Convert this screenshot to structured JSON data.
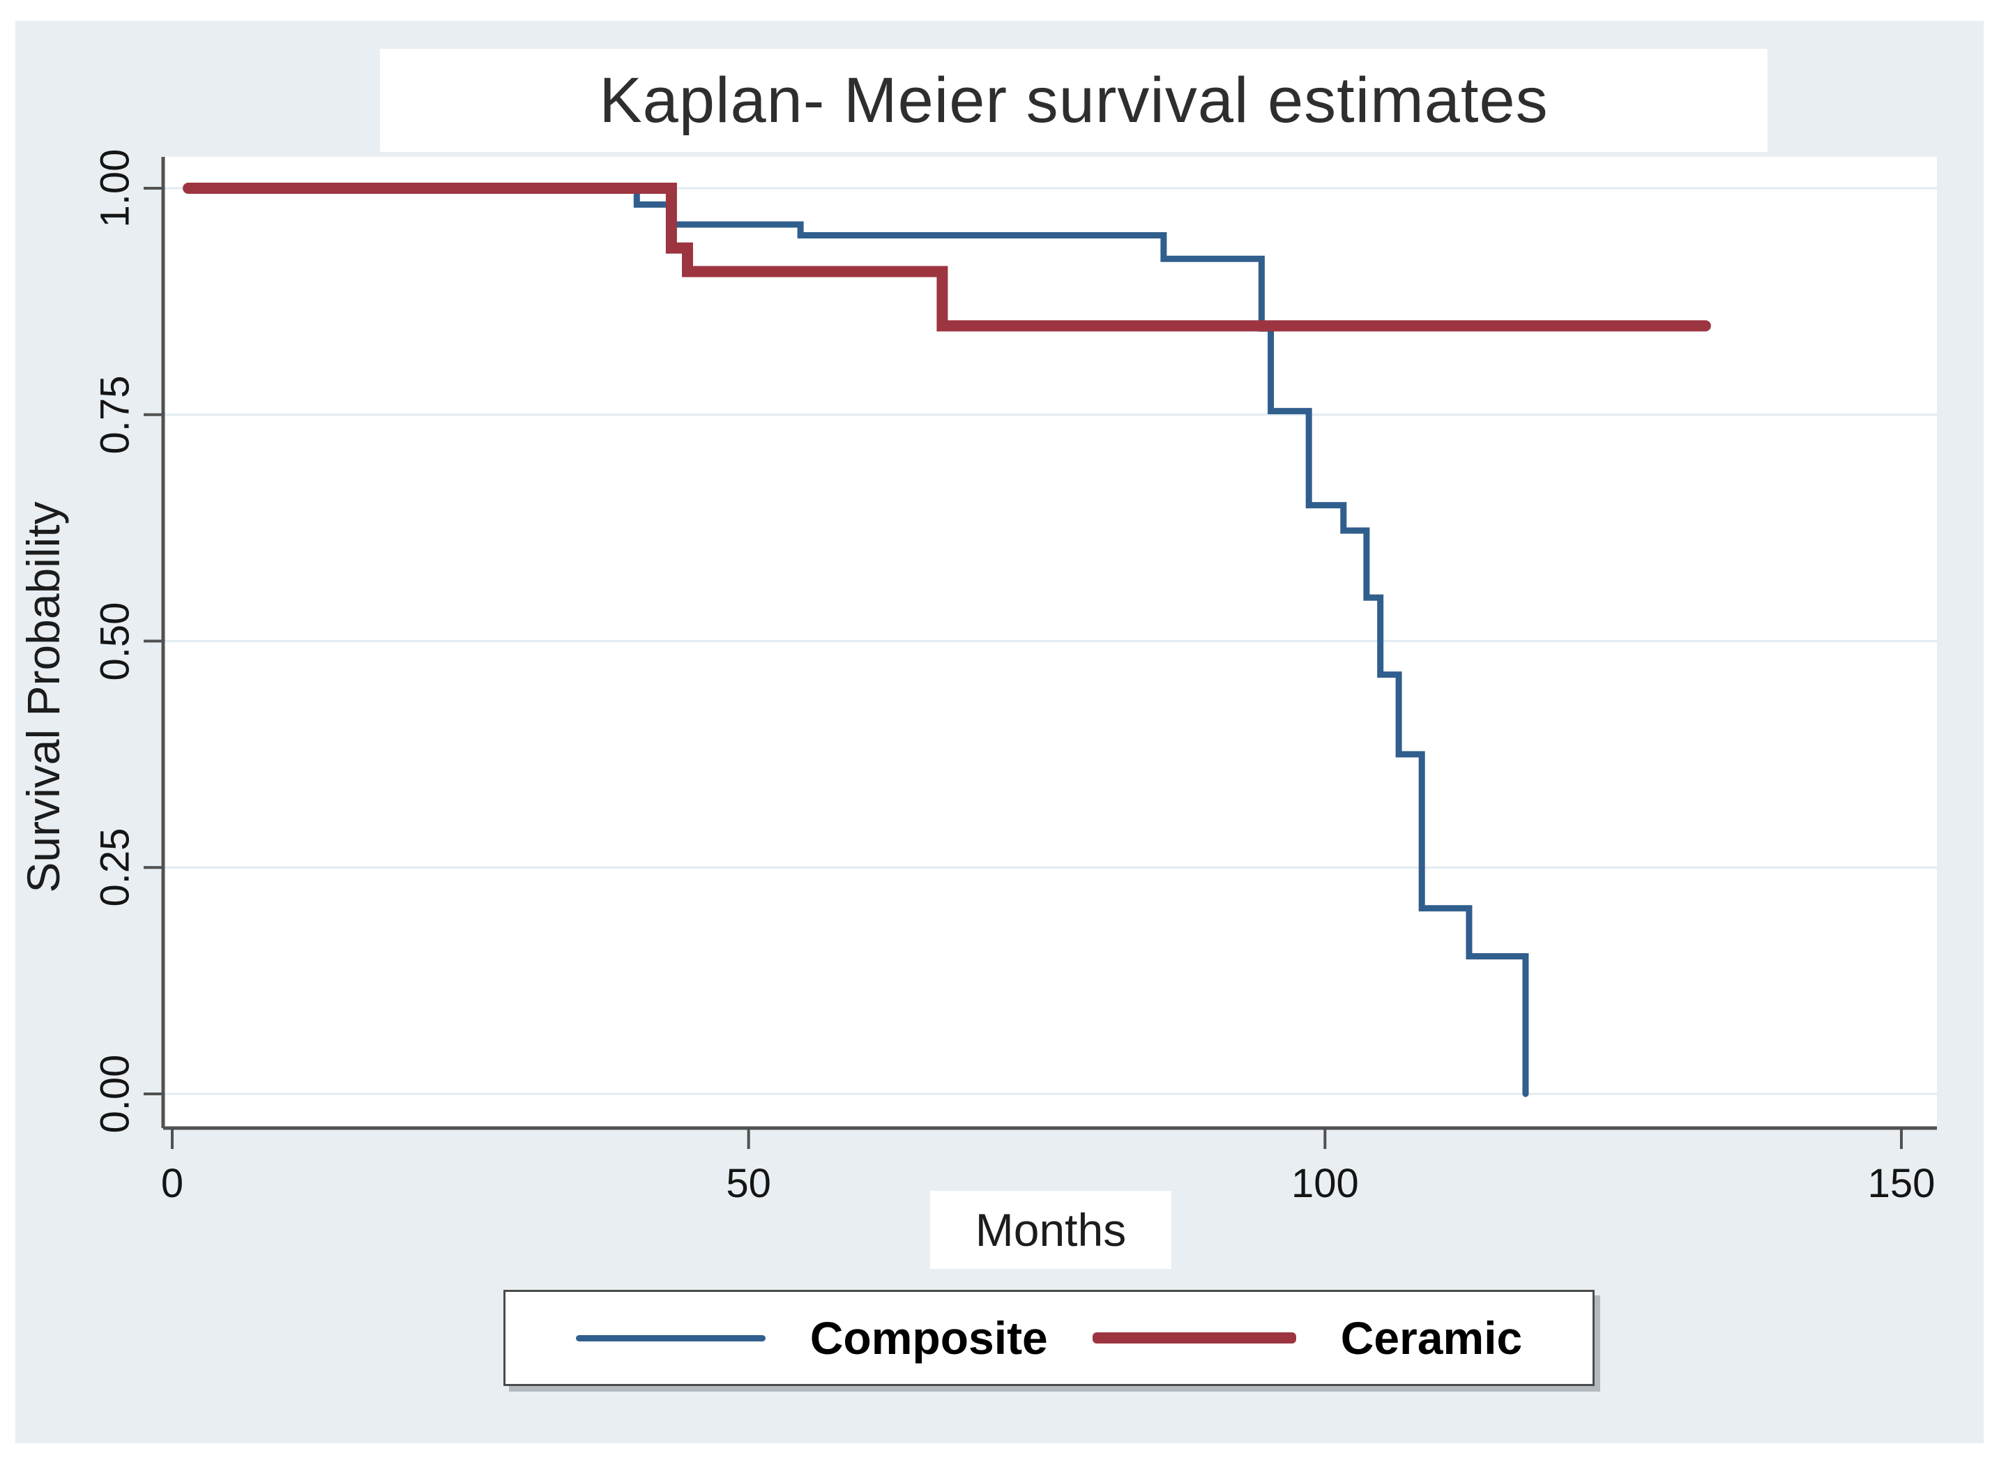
{
  "chart_data": {
    "type": "line",
    "subtype": "step-survival",
    "title": "Kaplan- Meier survival estimates",
    "xlabel": "Months",
    "ylabel": "Survival Probability",
    "xlim": [
      0,
      153
    ],
    "ylim": [
      0,
      1.0
    ],
    "grid": "horizontal",
    "legend_position": "bottom",
    "x_ticks": [
      {
        "value": 0,
        "label": "0"
      },
      {
        "value": 50,
        "label": "50"
      },
      {
        "value": 100,
        "label": "100"
      },
      {
        "value": 150,
        "label": "150"
      }
    ],
    "y_ticks": [
      {
        "value": 1.0,
        "label": "1.00"
      },
      {
        "value": 0.75,
        "label": "0.75"
      },
      {
        "value": 0.5,
        "label": "0.50"
      },
      {
        "value": 0.25,
        "label": "0.25"
      },
      {
        "value": 0.0,
        "label": "0.00"
      }
    ],
    "series": [
      {
        "name": "Composite",
        "color": "#305e8d",
        "line_width": 9,
        "steps": [
          [
            1.4,
            1.0
          ],
          [
            40.3,
            1.0
          ],
          [
            40.3,
            0.982
          ],
          [
            43.3,
            0.982
          ],
          [
            43.3,
            0.96
          ],
          [
            54.5,
            0.96
          ],
          [
            54.5,
            0.948
          ],
          [
            86.0,
            0.948
          ],
          [
            86.0,
            0.922
          ],
          [
            94.5,
            0.922
          ],
          [
            94.5,
            0.845
          ],
          [
            95.3,
            0.845
          ],
          [
            95.3,
            0.754
          ],
          [
            98.6,
            0.754
          ],
          [
            98.6,
            0.65
          ],
          [
            101.6,
            0.65
          ],
          [
            101.6,
            0.622
          ],
          [
            103.6,
            0.622
          ],
          [
            103.6,
            0.548
          ],
          [
            104.8,
            0.548
          ],
          [
            104.8,
            0.463
          ],
          [
            106.4,
            0.463
          ],
          [
            106.4,
            0.375
          ],
          [
            108.4,
            0.375
          ],
          [
            108.4,
            0.205
          ],
          [
            112.5,
            0.205
          ],
          [
            112.5,
            0.152
          ],
          [
            117.4,
            0.152
          ],
          [
            117.4,
            0.0
          ]
        ]
      },
      {
        "name": "Ceramic",
        "color": "#9c3540",
        "line_width": 16,
        "steps": [
          [
            1.4,
            1.0
          ],
          [
            43.3,
            1.0
          ],
          [
            43.3,
            0.934
          ],
          [
            44.7,
            0.934
          ],
          [
            44.7,
            0.908
          ],
          [
            66.8,
            0.908
          ],
          [
            66.8,
            0.848
          ],
          [
            133.0,
            0.848
          ]
        ]
      }
    ]
  },
  "legend": {
    "items": [
      {
        "label": "Composite",
        "color": "#305e8d"
      },
      {
        "label": "Ceramic",
        "color": "#9c3540"
      }
    ]
  },
  "style": {
    "figure_background": "#e8eef2",
    "plot_background": "#ffffff",
    "gridline_color": "#e0ecf3",
    "axis_color": "#515151"
  }
}
